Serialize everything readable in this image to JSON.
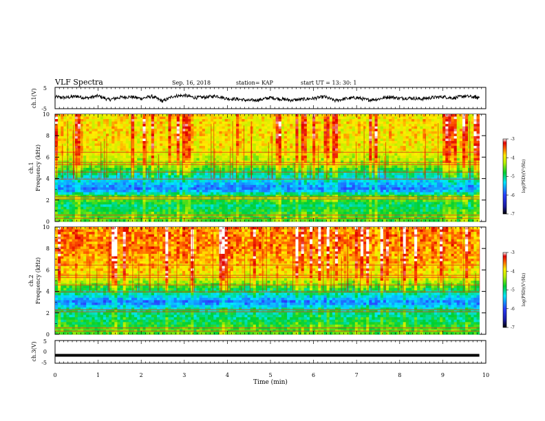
{
  "header": {
    "title": "VLF Spectra",
    "date": "Sep. 16, 2018",
    "station": "station= KAP",
    "start": "start  UT =   13: 30: 1"
  },
  "chart_data": [
    {
      "type": "line",
      "panel": "ch1-voltage",
      "ylabel": "ch.1(V)",
      "ylim": [
        -5,
        5
      ],
      "yticks": [
        "5",
        "-5"
      ],
      "xlim": [
        0,
        10
      ],
      "x": [
        0,
        0.25,
        0.5,
        0.75,
        1.0,
        1.25,
        1.5,
        1.75,
        2.0,
        2.25,
        2.5,
        2.75,
        3.0,
        3.25,
        3.5,
        3.75,
        4.0,
        4.25,
        4.5,
        4.75,
        5.0,
        5.25,
        5.5,
        5.75,
        6.0,
        6.25,
        6.5,
        6.75,
        7.0,
        7.25,
        7.5,
        7.75,
        8.0,
        8.25,
        8.5,
        8.75,
        9.0,
        9.25,
        9.5,
        9.75,
        9.85
      ],
      "y": [
        0.5,
        0.2,
        0.8,
        0.0,
        1.0,
        -0.8,
        0.3,
        0.6,
        -0.2,
        0.8,
        -1.5,
        0.9,
        1.2,
        0.2,
        0.4,
        1.0,
        -0.3,
        -0.5,
        -1.2,
        -0.8,
        0.2,
        -0.5,
        -1.0,
        -0.6,
        -0.2,
        0.6,
        -1.2,
        -0.3,
        0.2,
        -0.9,
        -0.5,
        0.6,
        -0.1,
        0.0,
        -0.4,
        0.2,
        0.6,
        0.0,
        0.9,
        0.4,
        0.1
      ]
    },
    {
      "type": "heatmap",
      "panel": "ch1-spectrogram",
      "ylabel": "ch.1 Frequency (kHz)",
      "ylim": [
        0,
        10
      ],
      "yticks": [
        "0",
        "2",
        "4",
        "6",
        "8",
        "10"
      ],
      "xlim": [
        0,
        10
      ],
      "freq_bands_khz": [
        0.5,
        1.5,
        2.2,
        3.0,
        3.9,
        4.5,
        5.3,
        6.5,
        8.0,
        9.5
      ],
      "level_log_psd": [
        -4.6,
        -5.0,
        -4.4,
        -5.8,
        -5.3,
        -5.0,
        -4.3,
        -4.0,
        -3.9,
        -3.9
      ],
      "colorbar": {
        "label": "log(PSD)(V²/Hz)",
        "range": [
          -7,
          -3
        ],
        "ticks": [
          "-3",
          "-4",
          "-5",
          "-6",
          "-7"
        ]
      }
    },
    {
      "type": "heatmap",
      "panel": "ch2-spectrogram",
      "ylabel": "ch.2 Frequency (kHz)",
      "ylim": [
        0,
        10
      ],
      "yticks": [
        "0",
        "2",
        "4",
        "6",
        "8",
        "10"
      ],
      "xlim": [
        0,
        10
      ],
      "freq_bands_khz": [
        0.5,
        1.5,
        2.2,
        3.0,
        3.9,
        4.5,
        5.3,
        6.5,
        8.0,
        9.5
      ],
      "level_log_psd": [
        -4.6,
        -5.0,
        -5.0,
        -5.8,
        -5.0,
        -4.6,
        -4.0,
        -3.8,
        -3.6,
        -3.6
      ],
      "colorbar": {
        "label": "log(PSD)(V²/Hz)",
        "range": [
          -7,
          -3
        ],
        "ticks": [
          "-3",
          "-4",
          "-5",
          "-6",
          "-7"
        ]
      }
    },
    {
      "type": "line",
      "panel": "ch3-voltage",
      "ylabel": "ch.3(V)",
      "ylim": [
        -5,
        5
      ],
      "yticks": [
        "5",
        "0",
        "-5"
      ],
      "xlim": [
        0,
        10
      ],
      "x": [
        0,
        9.85
      ],
      "y": [
        -1.5,
        -1.5
      ]
    }
  ],
  "xaxis": {
    "label": "Time (min)",
    "ticks": [
      "0",
      "1",
      "2",
      "3",
      "4",
      "5",
      "6",
      "7",
      "8",
      "9",
      "10"
    ]
  }
}
